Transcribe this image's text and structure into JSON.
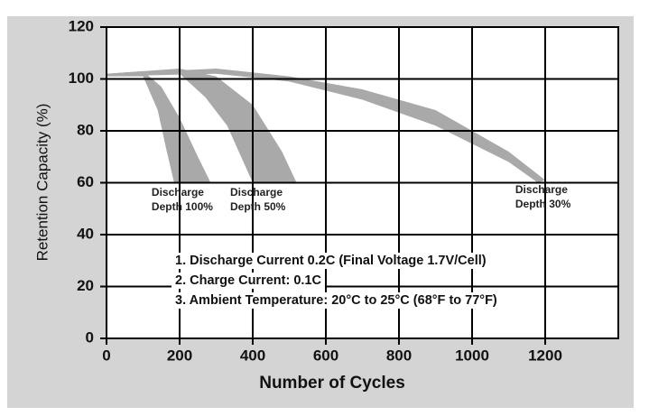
{
  "chart_data": {
    "type": "band",
    "xlabel": "Number of Cycles",
    "ylabel": "Retention Capacity (%)",
    "xlim": [
      0,
      1400
    ],
    "ylim": [
      0,
      120
    ],
    "xticks": [
      0,
      200,
      400,
      600,
      800,
      1000,
      1200
    ],
    "yticks": [
      0,
      20,
      40,
      60,
      80,
      100,
      120
    ],
    "grid": true,
    "series": [
      {
        "name": "Discharge Depth 100%",
        "color": "#a9a9a9",
        "upper": {
          "x": [
            0,
            100,
            150,
            200,
            250,
            285
          ],
          "y": [
            102,
            103,
            97,
            85,
            70,
            60
          ]
        },
        "lower": {
          "x": [
            0,
            100,
            140,
            165,
            185
          ],
          "y": [
            101,
            101,
            88,
            72,
            60
          ]
        }
      },
      {
        "name": "Discharge Depth 50%",
        "color": "#a9a9a9",
        "upper": {
          "x": [
            0,
            200,
            300,
            400,
            480,
            520
          ],
          "y": [
            102,
            104,
            101,
            90,
            72,
            60
          ]
        },
        "lower": {
          "x": [
            0,
            200,
            270,
            330,
            400
          ],
          "y": [
            101,
            102,
            93,
            82,
            60
          ]
        }
      },
      {
        "name": "Discharge Depth 30%",
        "color": "#a9a9a9",
        "upper": {
          "x": [
            0,
            300,
            500,
            700,
            900,
            1100,
            1200
          ],
          "y": [
            102,
            104,
            101,
            96,
            88,
            72,
            61
          ]
        },
        "lower": {
          "x": [
            0,
            300,
            500,
            700,
            900,
            1100,
            1180
          ],
          "y": [
            101,
            102,
            99,
            92,
            82,
            68,
            60
          ]
        }
      }
    ],
    "annotations": [
      "1. Discharge Current 0.2C (Final Voltage 1.7V/Cell)",
      "2. Charge Current: 0.1C",
      "3. Ambient Temperature: 20°C to 25°C (68°F to 77°F)"
    ]
  }
}
